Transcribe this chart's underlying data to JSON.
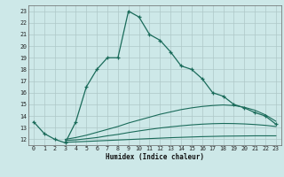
{
  "title": "",
  "xlabel": "Humidex (Indice chaleur)",
  "xlim": [
    -0.5,
    23.5
  ],
  "ylim": [
    11.5,
    23.5
  ],
  "xticks": [
    0,
    1,
    2,
    3,
    4,
    5,
    6,
    7,
    8,
    9,
    10,
    11,
    12,
    13,
    14,
    15,
    16,
    17,
    18,
    19,
    20,
    21,
    22,
    23
  ],
  "yticks": [
    12,
    13,
    14,
    15,
    16,
    17,
    18,
    19,
    20,
    21,
    22,
    23
  ],
  "bg_color": "#cde8e8",
  "grid_color": "#aec8c8",
  "line_color": "#1a6b5a",
  "main_x": [
    0,
    1,
    2,
    3,
    4,
    5,
    6,
    7,
    8,
    9,
    10,
    11,
    12,
    13,
    14,
    15,
    16,
    17,
    18,
    19,
    20,
    21,
    22,
    23
  ],
  "main_y": [
    13.5,
    12.5,
    12.0,
    11.7,
    13.5,
    16.5,
    18.0,
    19.0,
    19.0,
    23.0,
    22.5,
    21.0,
    20.5,
    19.5,
    18.3,
    18.0,
    17.2,
    16.0,
    15.7,
    15.0,
    14.7,
    14.3,
    14.0,
    13.3
  ],
  "curve2_x": [
    3,
    4,
    5,
    6,
    7,
    8,
    9,
    10,
    11,
    12,
    13,
    14,
    15,
    16,
    17,
    18,
    19,
    20,
    21,
    22,
    23
  ],
  "curve2_y": [
    12.0,
    12.15,
    12.35,
    12.6,
    12.85,
    13.1,
    13.4,
    13.65,
    13.9,
    14.15,
    14.35,
    14.55,
    14.7,
    14.82,
    14.9,
    14.95,
    14.9,
    14.75,
    14.5,
    14.1,
    13.55
  ],
  "curve3_x": [
    3,
    4,
    5,
    6,
    7,
    8,
    9,
    10,
    11,
    12,
    13,
    14,
    15,
    16,
    17,
    18,
    19,
    20,
    21,
    22,
    23
  ],
  "curve3_y": [
    11.9,
    11.95,
    12.05,
    12.15,
    12.3,
    12.42,
    12.58,
    12.72,
    12.85,
    12.97,
    13.07,
    13.16,
    13.24,
    13.3,
    13.34,
    13.36,
    13.35,
    13.32,
    13.27,
    13.2,
    13.1
  ],
  "curve4_x": [
    3,
    4,
    5,
    6,
    7,
    8,
    9,
    10,
    11,
    12,
    13,
    14,
    15,
    16,
    17,
    18,
    19,
    20,
    21,
    22,
    23
  ],
  "curve4_y": [
    11.75,
    11.78,
    11.82,
    11.86,
    11.9,
    11.94,
    11.98,
    12.02,
    12.06,
    12.1,
    12.14,
    12.17,
    12.2,
    12.23,
    12.25,
    12.27,
    12.28,
    12.29,
    12.3,
    12.3,
    12.3
  ]
}
